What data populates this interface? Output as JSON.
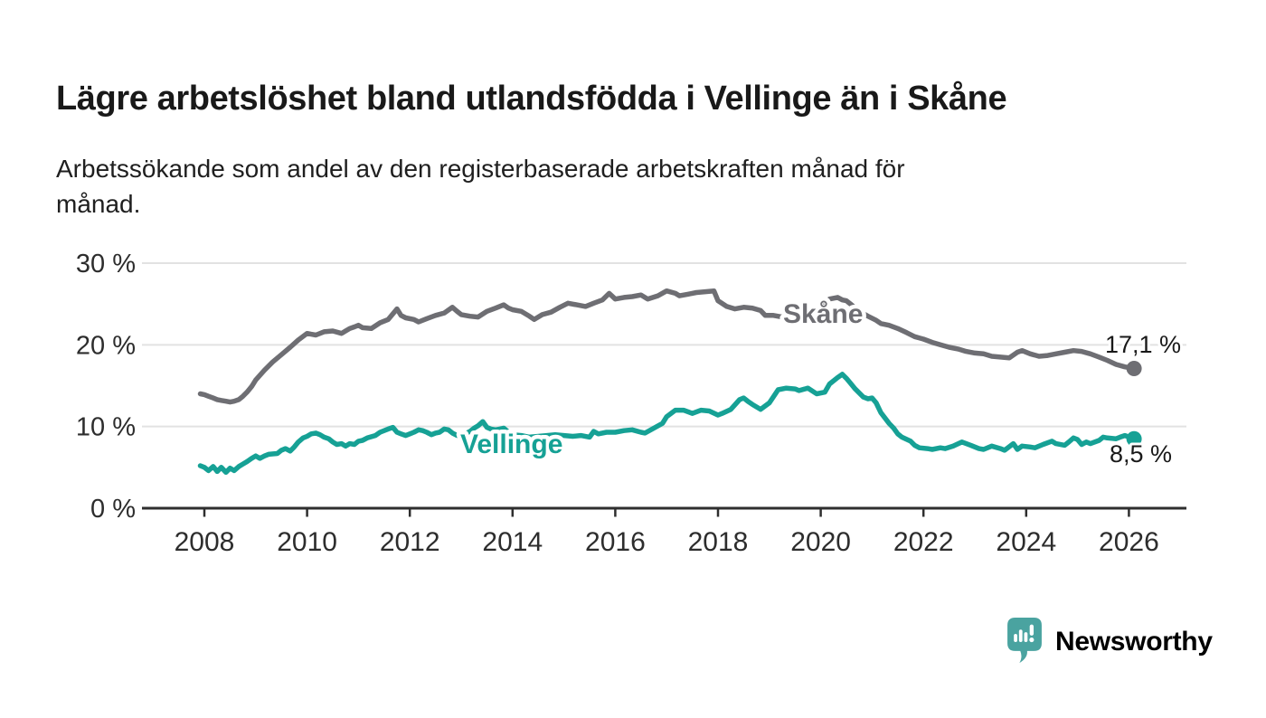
{
  "chart_data": {
    "type": "line",
    "title": "Lägre arbetslöshet bland utlandsfödda i Vellinge än i Skåne",
    "subtitle_lines": [
      "Arbetssökande som andel av den registerbaserade arbetskraften månad för",
      "månad."
    ],
    "x_unit": "year (monthly observations)",
    "y_unit": "percent",
    "xlim": [
      2007.9,
      2027.1
    ],
    "ylim": [
      0,
      30
    ],
    "grid": "horizontal-only",
    "legend": "inline-labels-on-lines",
    "x_ticks": [
      2008,
      2010,
      2012,
      2014,
      2016,
      2018,
      2020,
      2022,
      2024,
      2026
    ],
    "y_ticks": [
      {
        "value": 0,
        "label": "0 %"
      },
      {
        "value": 10,
        "label": "10 %"
      },
      {
        "value": 20,
        "label": "20 %"
      },
      {
        "value": 30,
        "label": "30 %"
      }
    ],
    "series": [
      {
        "name": "Skåne",
        "color": "#6e6e73",
        "inline_label": "Skåne",
        "end_label": "17,1 %",
        "end_value": 17.1,
        "points": [
          [
            2007.92,
            14.0
          ],
          [
            2008.0,
            13.9
          ],
          [
            2008.08,
            13.7
          ],
          [
            2008.17,
            13.5
          ],
          [
            2008.25,
            13.3
          ],
          [
            2008.33,
            13.2
          ],
          [
            2008.42,
            13.1
          ],
          [
            2008.5,
            13.0
          ],
          [
            2008.58,
            13.1
          ],
          [
            2008.67,
            13.3
          ],
          [
            2008.75,
            13.7
          ],
          [
            2008.83,
            14.2
          ],
          [
            2008.92,
            14.9
          ],
          [
            2009.0,
            15.7
          ],
          [
            2009.17,
            16.9
          ],
          [
            2009.33,
            17.9
          ],
          [
            2009.5,
            18.8
          ],
          [
            2009.67,
            19.7
          ],
          [
            2009.83,
            20.6
          ],
          [
            2010.0,
            21.4
          ],
          [
            2010.08,
            21.3
          ],
          [
            2010.17,
            21.2
          ],
          [
            2010.33,
            21.6
          ],
          [
            2010.5,
            21.7
          ],
          [
            2010.67,
            21.4
          ],
          [
            2010.83,
            22.0
          ],
          [
            2010.92,
            22.2
          ],
          [
            2011.0,
            22.4
          ],
          [
            2011.08,
            22.1
          ],
          [
            2011.25,
            22.0
          ],
          [
            2011.42,
            22.7
          ],
          [
            2011.58,
            23.1
          ],
          [
            2011.75,
            24.4
          ],
          [
            2011.83,
            23.6
          ],
          [
            2011.92,
            23.3
          ],
          [
            2012.08,
            23.1
          ],
          [
            2012.17,
            22.8
          ],
          [
            2012.33,
            23.2
          ],
          [
            2012.5,
            23.6
          ],
          [
            2012.67,
            23.9
          ],
          [
            2012.83,
            24.6
          ],
          [
            2012.92,
            24.1
          ],
          [
            2013.0,
            23.7
          ],
          [
            2013.17,
            23.5
          ],
          [
            2013.33,
            23.4
          ],
          [
            2013.5,
            24.1
          ],
          [
            2013.67,
            24.5
          ],
          [
            2013.83,
            24.9
          ],
          [
            2013.92,
            24.5
          ],
          [
            2014.0,
            24.3
          ],
          [
            2014.17,
            24.1
          ],
          [
            2014.33,
            23.5
          ],
          [
            2014.42,
            23.1
          ],
          [
            2014.58,
            23.7
          ],
          [
            2014.75,
            24.0
          ],
          [
            2014.92,
            24.6
          ],
          [
            2015.08,
            25.1
          ],
          [
            2015.25,
            24.9
          ],
          [
            2015.42,
            24.7
          ],
          [
            2015.58,
            25.1
          ],
          [
            2015.75,
            25.5
          ],
          [
            2015.88,
            26.3
          ],
          [
            2016.0,
            25.6
          ],
          [
            2016.17,
            25.8
          ],
          [
            2016.33,
            25.9
          ],
          [
            2016.5,
            26.1
          ],
          [
            2016.63,
            25.6
          ],
          [
            2016.83,
            26.0
          ],
          [
            2017.0,
            26.6
          ],
          [
            2017.17,
            26.3
          ],
          [
            2017.25,
            26.0
          ],
          [
            2017.42,
            26.2
          ],
          [
            2017.58,
            26.4
          ],
          [
            2017.75,
            26.5
          ],
          [
            2017.92,
            26.6
          ],
          [
            2018.0,
            25.4
          ],
          [
            2018.17,
            24.7
          ],
          [
            2018.33,
            24.4
          ],
          [
            2018.5,
            24.6
          ],
          [
            2018.67,
            24.5
          ],
          [
            2018.83,
            24.2
          ],
          [
            2018.92,
            23.6
          ],
          [
            2019.08,
            23.6
          ],
          [
            2019.25,
            23.4
          ],
          [
            2019.42,
            23.3
          ],
          [
            2019.58,
            23.4
          ],
          [
            2019.75,
            23.7
          ],
          [
            2019.92,
            24.3
          ],
          [
            2020.08,
            25.1
          ],
          [
            2020.17,
            25.6
          ],
          [
            2020.33,
            25.8
          ],
          [
            2020.42,
            25.5
          ],
          [
            2020.5,
            25.4
          ],
          [
            2020.58,
            25.0
          ],
          [
            2020.75,
            24.1
          ],
          [
            2020.92,
            23.5
          ],
          [
            2021.08,
            23.0
          ],
          [
            2021.17,
            22.6
          ],
          [
            2021.33,
            22.4
          ],
          [
            2021.5,
            22.0
          ],
          [
            2021.67,
            21.5
          ],
          [
            2021.83,
            21.0
          ],
          [
            2022.0,
            20.7
          ],
          [
            2022.17,
            20.3
          ],
          [
            2022.33,
            20.0
          ],
          [
            2022.5,
            19.7
          ],
          [
            2022.67,
            19.5
          ],
          [
            2022.83,
            19.2
          ],
          [
            2023.0,
            19.0
          ],
          [
            2023.17,
            18.9
          ],
          [
            2023.33,
            18.6
          ],
          [
            2023.5,
            18.5
          ],
          [
            2023.67,
            18.4
          ],
          [
            2023.83,
            19.1
          ],
          [
            2023.92,
            19.3
          ],
          [
            2024.08,
            18.9
          ],
          [
            2024.25,
            18.6
          ],
          [
            2024.42,
            18.7
          ],
          [
            2024.58,
            18.9
          ],
          [
            2024.75,
            19.1
          ],
          [
            2024.92,
            19.3
          ],
          [
            2025.08,
            19.2
          ],
          [
            2025.25,
            18.9
          ],
          [
            2025.42,
            18.5
          ],
          [
            2025.58,
            18.1
          ],
          [
            2025.75,
            17.6
          ],
          [
            2025.92,
            17.3
          ],
          [
            2026.1,
            17.1
          ]
        ]
      },
      {
        "name": "Vellinge",
        "color": "#16a195",
        "inline_label": "Vellinge",
        "end_label": "8,5 %",
        "end_value": 8.5,
        "points": [
          [
            2007.92,
            5.2
          ],
          [
            2008.0,
            5.0
          ],
          [
            2008.08,
            4.6
          ],
          [
            2008.17,
            5.1
          ],
          [
            2008.25,
            4.5
          ],
          [
            2008.33,
            5.0
          ],
          [
            2008.42,
            4.4
          ],
          [
            2008.5,
            4.9
          ],
          [
            2008.58,
            4.6
          ],
          [
            2008.67,
            5.1
          ],
          [
            2008.75,
            5.4
          ],
          [
            2008.83,
            5.7
          ],
          [
            2008.92,
            6.1
          ],
          [
            2009.0,
            6.4
          ],
          [
            2009.08,
            6.1
          ],
          [
            2009.17,
            6.4
          ],
          [
            2009.25,
            6.6
          ],
          [
            2009.42,
            6.7
          ],
          [
            2009.5,
            7.1
          ],
          [
            2009.58,
            7.3
          ],
          [
            2009.67,
            7.0
          ],
          [
            2009.75,
            7.5
          ],
          [
            2009.83,
            8.1
          ],
          [
            2009.92,
            8.6
          ],
          [
            2010.0,
            8.8
          ],
          [
            2010.08,
            9.1
          ],
          [
            2010.17,
            9.2
          ],
          [
            2010.25,
            9.0
          ],
          [
            2010.33,
            8.7
          ],
          [
            2010.42,
            8.5
          ],
          [
            2010.5,
            8.1
          ],
          [
            2010.58,
            7.8
          ],
          [
            2010.67,
            7.9
          ],
          [
            2010.75,
            7.6
          ],
          [
            2010.83,
            7.9
          ],
          [
            2010.92,
            7.8
          ],
          [
            2011.0,
            8.2
          ],
          [
            2011.08,
            8.3
          ],
          [
            2011.17,
            8.6
          ],
          [
            2011.33,
            8.9
          ],
          [
            2011.42,
            9.3
          ],
          [
            2011.58,
            9.7
          ],
          [
            2011.67,
            9.9
          ],
          [
            2011.75,
            9.3
          ],
          [
            2011.83,
            9.1
          ],
          [
            2011.92,
            8.9
          ],
          [
            2012.0,
            9.1
          ],
          [
            2012.08,
            9.3
          ],
          [
            2012.17,
            9.6
          ],
          [
            2012.25,
            9.5
          ],
          [
            2012.33,
            9.3
          ],
          [
            2012.42,
            9.0
          ],
          [
            2012.5,
            9.2
          ],
          [
            2012.58,
            9.3
          ],
          [
            2012.67,
            9.7
          ],
          [
            2012.75,
            9.6
          ],
          [
            2012.83,
            9.2
          ],
          [
            2012.92,
            8.9
          ],
          [
            2013.0,
            8.8
          ],
          [
            2013.08,
            9.1
          ],
          [
            2013.17,
            9.4
          ],
          [
            2013.25,
            9.8
          ],
          [
            2013.33,
            10.1
          ],
          [
            2013.42,
            10.6
          ],
          [
            2013.5,
            9.9
          ],
          [
            2013.58,
            9.7
          ],
          [
            2013.67,
            9.6
          ],
          [
            2013.75,
            9.7
          ],
          [
            2013.83,
            9.8
          ],
          [
            2013.92,
            9.3
          ],
          [
            2014.0,
            9.0
          ],
          [
            2014.17,
            8.9
          ],
          [
            2014.33,
            8.7
          ],
          [
            2014.5,
            8.8
          ],
          [
            2014.67,
            8.9
          ],
          [
            2014.83,
            9.0
          ],
          [
            2015.0,
            8.9
          ],
          [
            2015.17,
            8.8
          ],
          [
            2015.33,
            8.9
          ],
          [
            2015.5,
            8.7
          ],
          [
            2015.58,
            9.4
          ],
          [
            2015.67,
            9.1
          ],
          [
            2015.83,
            9.3
          ],
          [
            2016.0,
            9.3
          ],
          [
            2016.17,
            9.5
          ],
          [
            2016.33,
            9.6
          ],
          [
            2016.5,
            9.3
          ],
          [
            2016.58,
            9.2
          ],
          [
            2016.75,
            9.8
          ],
          [
            2016.92,
            10.4
          ],
          [
            2017.0,
            11.2
          ],
          [
            2017.17,
            12.0
          ],
          [
            2017.33,
            12.0
          ],
          [
            2017.5,
            11.6
          ],
          [
            2017.67,
            12.0
          ],
          [
            2017.83,
            11.9
          ],
          [
            2018.0,
            11.4
          ],
          [
            2018.08,
            11.6
          ],
          [
            2018.25,
            12.1
          ],
          [
            2018.42,
            13.3
          ],
          [
            2018.5,
            13.5
          ],
          [
            2018.58,
            13.1
          ],
          [
            2018.67,
            12.7
          ],
          [
            2018.83,
            12.1
          ],
          [
            2019.0,
            12.9
          ],
          [
            2019.17,
            14.5
          ],
          [
            2019.33,
            14.7
          ],
          [
            2019.5,
            14.6
          ],
          [
            2019.58,
            14.4
          ],
          [
            2019.75,
            14.7
          ],
          [
            2019.92,
            14.0
          ],
          [
            2020.08,
            14.2
          ],
          [
            2020.17,
            15.2
          ],
          [
            2020.33,
            16.0
          ],
          [
            2020.42,
            16.4
          ],
          [
            2020.5,
            15.9
          ],
          [
            2020.58,
            15.3
          ],
          [
            2020.67,
            14.6
          ],
          [
            2020.83,
            13.6
          ],
          [
            2020.92,
            13.4
          ],
          [
            2021.0,
            13.5
          ],
          [
            2021.08,
            12.9
          ],
          [
            2021.17,
            11.7
          ],
          [
            2021.33,
            10.4
          ],
          [
            2021.42,
            9.8
          ],
          [
            2021.5,
            9.1
          ],
          [
            2021.58,
            8.7
          ],
          [
            2021.75,
            8.2
          ],
          [
            2021.83,
            7.7
          ],
          [
            2021.92,
            7.4
          ],
          [
            2022.08,
            7.3
          ],
          [
            2022.17,
            7.2
          ],
          [
            2022.33,
            7.4
          ],
          [
            2022.42,
            7.3
          ],
          [
            2022.58,
            7.6
          ],
          [
            2022.75,
            8.1
          ],
          [
            2022.92,
            7.7
          ],
          [
            2023.08,
            7.3
          ],
          [
            2023.17,
            7.2
          ],
          [
            2023.33,
            7.6
          ],
          [
            2023.5,
            7.3
          ],
          [
            2023.58,
            7.1
          ],
          [
            2023.75,
            7.9
          ],
          [
            2023.83,
            7.2
          ],
          [
            2023.92,
            7.6
          ],
          [
            2024.08,
            7.5
          ],
          [
            2024.17,
            7.4
          ],
          [
            2024.33,
            7.8
          ],
          [
            2024.5,
            8.2
          ],
          [
            2024.58,
            7.9
          ],
          [
            2024.75,
            7.7
          ],
          [
            2024.83,
            8.1
          ],
          [
            2024.92,
            8.6
          ],
          [
            2025.0,
            8.4
          ],
          [
            2025.08,
            7.8
          ],
          [
            2025.17,
            8.1
          ],
          [
            2025.25,
            7.9
          ],
          [
            2025.42,
            8.3
          ],
          [
            2025.5,
            8.7
          ],
          [
            2025.58,
            8.6
          ],
          [
            2025.75,
            8.5
          ],
          [
            2025.83,
            8.7
          ],
          [
            2025.92,
            8.9
          ],
          [
            2026.1,
            8.5
          ]
        ]
      }
    ]
  },
  "branding": {
    "logo_text": "Newsworthy",
    "logo_color": "#4aa3a0"
  }
}
